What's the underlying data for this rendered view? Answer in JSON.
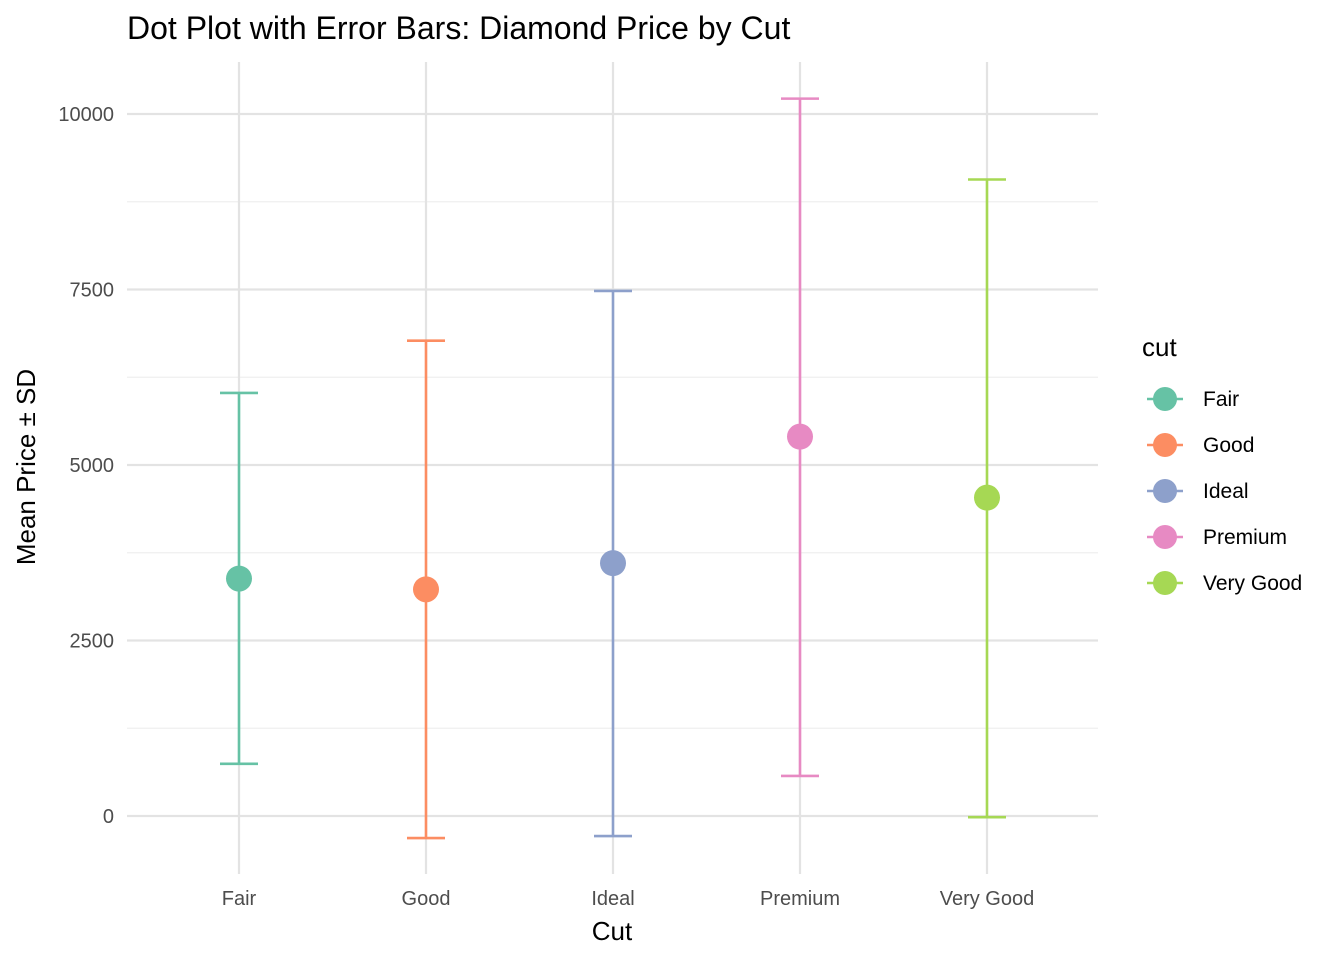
{
  "chart_data": {
    "type": "scatter",
    "title": "Dot Plot with Error Bars: Diamond Price by Cut",
    "xlabel": "Cut",
    "ylabel": "Mean Price ± SD",
    "categories": [
      "Fair",
      "Good",
      "Ideal",
      "Premium",
      "Very Good"
    ],
    "ylim": [
      -740,
      10700
    ],
    "y_ticks": [
      0,
      2500,
      5000,
      7500,
      10000
    ],
    "y_tick_labels": [
      "0",
      "2500",
      "5000",
      "7500",
      "10000"
    ],
    "grid": true,
    "legend": {
      "title": "cut",
      "placement": "right"
    },
    "series": [
      {
        "name": "Fair",
        "mean": 3382,
        "lower": 744,
        "upper": 6026,
        "color": "#66c2a5"
      },
      {
        "name": "Good",
        "mean": 3229,
        "lower": -314,
        "upper": 6771,
        "color": "#fc8d62"
      },
      {
        "name": "Ideal",
        "mean": 3602,
        "lower": -286,
        "upper": 7480,
        "color": "#8da0cb"
      },
      {
        "name": "Premium",
        "mean": 5404,
        "lower": 570,
        "upper": 10219,
        "color": "#e78ac3"
      },
      {
        "name": "Very Good",
        "mean": 4535,
        "lower": -17,
        "upper": 9067,
        "color": "#a6d854"
      }
    ]
  }
}
